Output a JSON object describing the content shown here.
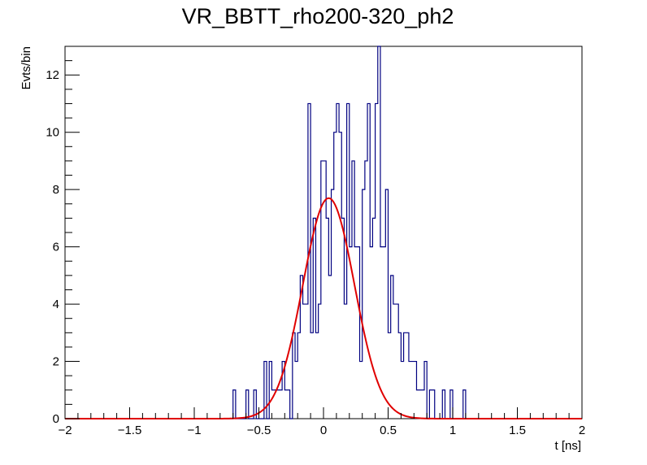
{
  "chart_data": {
    "type": "histogram",
    "title": "VR_BBTT_rho200-320_ph2",
    "xlabel": "t [ns]",
    "ylabel": "Evts/bin",
    "xlim": [
      -2,
      2
    ],
    "ylim": [
      0,
      13
    ],
    "x_ticks": [
      -2,
      -1.5,
      -1,
      -0.5,
      0,
      0.5,
      1,
      1.5,
      2
    ],
    "x_tick_labels": [
      "−2",
      "−1.5",
      "−1",
      "−0.5",
      "0",
      "0.5",
      "1",
      "1.5",
      "2"
    ],
    "y_ticks": [
      0,
      2,
      4,
      6,
      8,
      10,
      12
    ],
    "y_tick_labels": [
      "0",
      "2",
      "4",
      "6",
      "8",
      "10",
      "12"
    ],
    "bin_width": 0.02,
    "bin_start": -2,
    "counts": [
      0,
      0,
      0,
      0,
      0,
      0,
      0,
      0,
      0,
      0,
      0,
      0,
      0,
      0,
      0,
      0,
      0,
      0,
      0,
      0,
      0,
      0,
      0,
      0,
      0,
      0,
      0,
      0,
      0,
      0,
      0,
      0,
      0,
      0,
      0,
      0,
      0,
      0,
      0,
      0,
      0,
      0,
      0,
      0,
      0,
      0,
      0,
      0,
      0,
      0,
      0,
      0,
      0,
      0,
      0,
      0,
      0,
      0,
      0,
      0,
      0,
      0,
      0,
      0,
      0,
      1,
      0,
      0,
      0,
      0,
      1,
      0,
      0,
      1,
      0,
      0,
      0,
      2,
      0,
      2,
      1,
      1,
      1,
      1,
      2,
      1,
      1,
      0,
      3,
      2,
      3,
      5,
      4,
      4,
      11,
      3,
      7,
      3,
      4,
      9,
      9,
      7,
      5,
      8,
      10,
      11,
      10,
      7,
      4,
      11,
      6,
      9,
      6,
      6,
      2,
      8,
      9,
      11,
      6,
      7,
      11,
      13,
      6,
      6,
      8,
      3,
      5,
      4,
      4,
      3,
      2,
      3,
      3,
      2,
      2,
      2,
      1,
      1,
      1,
      2,
      0,
      1,
      1,
      0,
      0,
      0,
      1,
      0,
      0,
      1,
      0,
      0,
      0,
      0,
      1,
      0,
      0,
      0,
      0,
      0,
      0,
      0,
      0,
      0,
      0,
      0,
      0,
      0,
      0,
      0,
      0,
      0,
      0,
      0,
      0,
      0,
      0,
      0,
      0,
      0,
      0,
      0,
      0,
      0,
      0,
      0,
      0,
      0,
      0,
      0,
      0,
      0,
      0,
      0,
      0,
      0,
      0,
      0,
      0,
      0
    ],
    "fit": {
      "type": "gaussian",
      "amplitude": 7.7,
      "mean": 0.04,
      "sigma": 0.2
    },
    "colors": {
      "histogram": "#000080",
      "fit": "#e00000",
      "frame": "#000000"
    },
    "grid": false,
    "legend": "none"
  }
}
